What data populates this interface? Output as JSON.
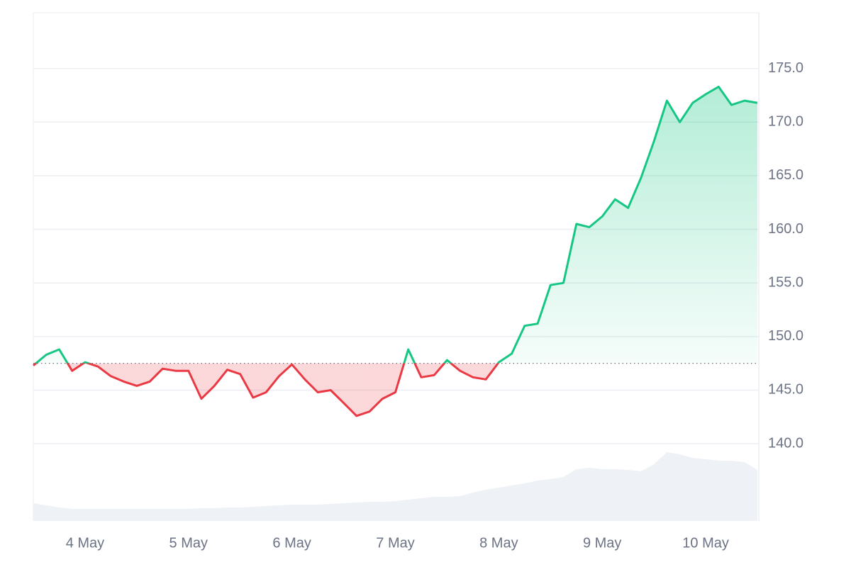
{
  "chart_data": {
    "type": "line",
    "categories": [
      null,
      null,
      null,
      null,
      "4 May",
      null,
      null,
      null,
      null,
      null,
      null,
      null,
      "5 May",
      null,
      null,
      null,
      null,
      null,
      null,
      null,
      "6 May",
      null,
      null,
      null,
      null,
      null,
      null,
      null,
      "7 May",
      null,
      null,
      null,
      null,
      null,
      null,
      null,
      "8 May",
      null,
      null,
      null,
      null,
      null,
      null,
      null,
      "9 May",
      null,
      null,
      null,
      null,
      null,
      null,
      null,
      "10 May",
      null,
      null,
      null,
      null
    ],
    "series": [
      {
        "values": [
          147.3,
          148.3,
          148.8,
          146.8,
          147.6,
          147.2,
          146.3,
          145.8,
          145.4,
          145.8,
          147.0,
          146.8,
          146.8,
          144.2,
          145.4,
          146.9,
          146.5,
          144.3,
          144.8,
          146.3,
          147.4,
          146.0,
          144.8,
          145.0,
          143.8,
          142.6,
          143.0,
          144.2,
          144.8,
          148.8,
          146.2,
          146.4,
          147.8,
          146.8,
          146.2,
          146.0,
          147.6,
          148.4,
          151.0,
          151.2,
          154.8,
          155.0,
          160.5,
          160.2,
          161.2,
          162.8,
          162.0,
          164.8,
          168.2,
          172.0,
          170.0,
          171.8,
          172.6,
          173.3,
          171.6,
          172.0,
          171.8
        ],
        "up_color": "#16c784",
        "down_color": "#ea3943"
      },
      {
        "values": [
          25,
          22,
          19,
          17,
          17,
          17,
          17,
          17,
          17,
          17,
          17,
          17,
          17,
          18,
          18,
          19,
          19,
          20,
          21,
          22,
          23,
          23,
          23,
          24,
          25,
          26,
          27,
          27,
          28,
          30,
          32,
          34,
          34,
          35,
          40,
          44,
          47,
          50,
          53,
          57,
          59,
          62,
          73,
          75,
          73,
          73,
          72,
          70,
          80,
          97,
          94,
          89,
          87,
          85,
          85,
          83,
          72
        ],
        "color": "#eef1f5",
        "axis": "y2"
      }
    ],
    "baseline": 147.5,
    "ylim": [
      132.8,
      180.2
    ],
    "yticks": [
      {
        "value": 140,
        "label": "140.0"
      },
      {
        "value": 145,
        "label": "145.0"
      },
      {
        "value": 150,
        "label": "150.0"
      },
      {
        "value": 155,
        "label": "155.0"
      },
      {
        "value": 160,
        "label": "160.0"
      },
      {
        "value": 165,
        "label": "165.0"
      },
      {
        "value": 170,
        "label": "170.0"
      },
      {
        "value": 175,
        "label": "175.0"
      }
    ],
    "y2lim": [
      0,
      100
    ],
    "grid": true
  }
}
